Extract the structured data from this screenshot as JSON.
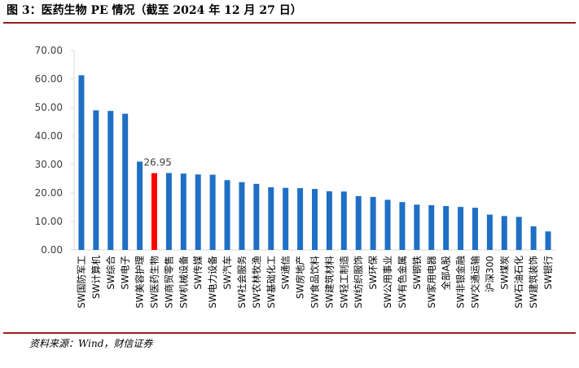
{
  "figure": {
    "title": "图 3：医药生物 PE 情况（截至 2024 年 12 月 27 日）",
    "source": "资料来源：Wind，财信证券"
  },
  "colors": {
    "bar": "#1f6fc5",
    "highlight": "#ff0000",
    "axis": "#d9d9d9",
    "rule": "#9a1e1e"
  },
  "chart_data": {
    "type": "bar",
    "title": "医药生物 PE 情况（截至 2024 年 12 月 27 日）",
    "xlabel": "",
    "ylabel": "",
    "ylim": [
      0,
      70
    ],
    "yticks": [
      "0.00",
      "10.00",
      "20.00",
      "30.00",
      "40.00",
      "50.00",
      "60.00",
      "70.00"
    ],
    "grid": false,
    "highlight_index": 5,
    "highlight_label": "26.95",
    "categories": [
      "SW国防军工",
      "SW计算机",
      "SW综合",
      "SW电子",
      "SW美容护理",
      "SW医药生物",
      "SW商贸零售",
      "SW机械设备",
      "SW传媒",
      "SW电力设备",
      "SW汽车",
      "SW社会服务",
      "SW农林牧渔",
      "SW基础化工",
      "SW通信",
      "SW房地产",
      "SW食品饮料",
      "SW建筑材料",
      "SW轻工制造",
      "SW纺织服饰",
      "SW环保",
      "SW公用事业",
      "SW有色金属",
      "SW钢铁",
      "SW家用电器",
      "全部A股",
      "SW非银金融",
      "SW交通运输",
      "沪深300",
      "SW煤炭",
      "SW石油石化",
      "SW建筑装饰",
      "SW银行"
    ],
    "values": [
      61.3,
      49.0,
      48.8,
      47.8,
      31.0,
      26.95,
      27.0,
      26.8,
      26.5,
      26.4,
      24.5,
      23.8,
      23.2,
      22.0,
      21.8,
      21.7,
      21.4,
      20.6,
      20.5,
      18.9,
      18.6,
      17.6,
      16.8,
      15.9,
      15.7,
      15.4,
      15.1,
      14.8,
      12.4,
      11.9,
      11.6,
      8.3,
      6.5
    ]
  }
}
